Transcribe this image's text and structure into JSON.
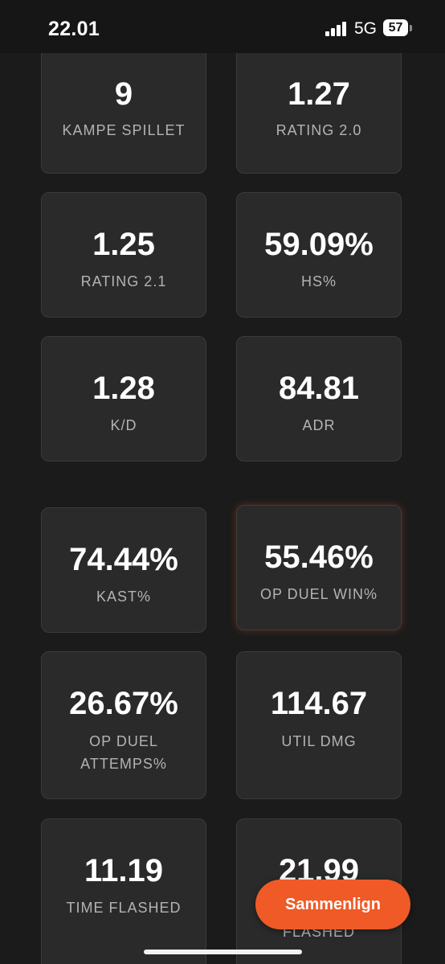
{
  "status_bar": {
    "time": "22.01",
    "network": "5G",
    "battery": "57"
  },
  "stats": [
    {
      "value": "9",
      "label": "KAMPE SPILLET"
    },
    {
      "value": "1.27",
      "label": "RATING 2.0"
    },
    {
      "value": "1.25",
      "label": "RATING 2.1"
    },
    {
      "value": "59.09%",
      "label": "HS%"
    },
    {
      "value": "1.28",
      "label": "K/D"
    },
    {
      "value": "84.81",
      "label": "ADR"
    },
    {
      "value": "74.44%",
      "label": "KAST%"
    },
    {
      "value": "55.46%",
      "label": "OP DUEL WIN%"
    },
    {
      "value": "26.67%",
      "label": "OP DUEL ATTEMPS%"
    },
    {
      "value": "114.67",
      "label": "UTIL DMG"
    },
    {
      "value": "11.19",
      "label": "TIME FLASHED"
    },
    {
      "value": "21.99",
      "label": "FLASHED"
    }
  ],
  "compare_button": {
    "label": "Sammenlign"
  }
}
